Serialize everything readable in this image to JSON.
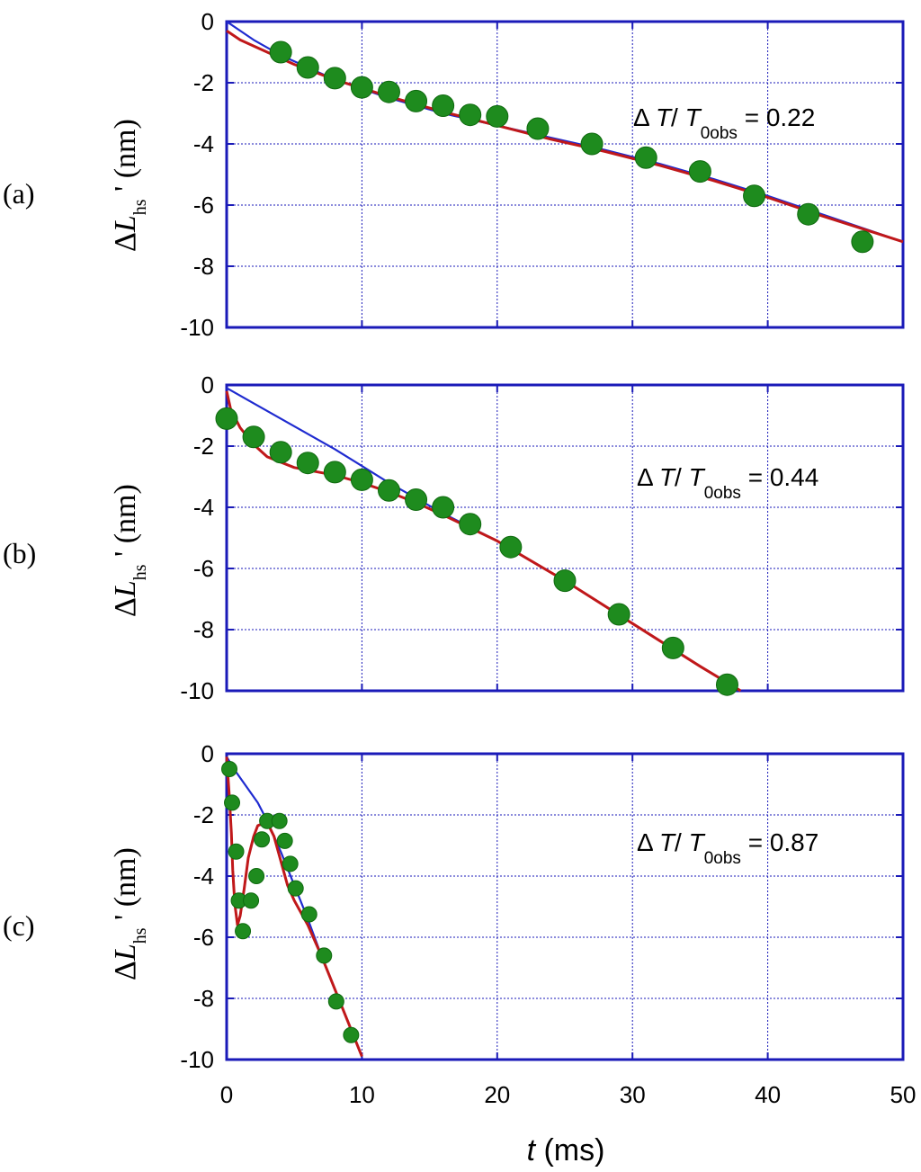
{
  "colors": {
    "frame": "#1a1ab8",
    "grid": "#1a1ab8",
    "blue_line": "#1f2bd0",
    "red_line": "#c0181a",
    "dots": "#1e8b1e",
    "dots_edge": "#0f6a0f"
  },
  "chart_data": [
    {
      "type": "line",
      "panel_label": "(a)",
      "ylabel": "ΔL",
      "ylabel_sub": "hs",
      "ylabel_prime": "'",
      "ylabel_unit": "(nm)",
      "annotation": {
        "delta": "Δ",
        "T": "T",
        "slash": "/ ",
        "T0": "T",
        "sub": "0obs",
        "eq": "= 0.22"
      },
      "xlim": [
        0,
        50
      ],
      "ylim": [
        -10,
        0
      ],
      "x_ticks": [
        "0",
        "10",
        "20",
        "30",
        "40",
        "50"
      ],
      "y_ticks": [
        "0",
        "-2",
        "-4",
        "-6",
        "-8",
        "-10"
      ],
      "x_tick_values": [
        0,
        10,
        20,
        30,
        40,
        50
      ],
      "y_tick_values": [
        0,
        -2,
        -4,
        -6,
        -8,
        -10
      ],
      "grid": true,
      "series": [
        {
          "style": "blue_line",
          "x": [
            0,
            2,
            4,
            8,
            12,
            16,
            20,
            24,
            28,
            32,
            36,
            40,
            44,
            50
          ],
          "y": [
            0,
            -0.6,
            -1.1,
            -1.9,
            -2.5,
            -3.0,
            -3.4,
            -3.8,
            -4.2,
            -4.65,
            -5.15,
            -5.7,
            -6.3,
            -7.2
          ]
        },
        {
          "style": "red_line",
          "x": [
            0,
            1,
            3,
            5,
            8,
            12,
            16,
            20,
            24,
            28,
            32,
            36,
            40,
            44,
            50
          ],
          "y": [
            -0.3,
            -0.6,
            -1.0,
            -1.4,
            -1.9,
            -2.45,
            -2.95,
            -3.4,
            -3.85,
            -4.25,
            -4.7,
            -5.2,
            -5.75,
            -6.35,
            -7.2
          ]
        },
        {
          "style": "dots",
          "x": [
            4,
            6,
            8,
            10,
            12,
            14,
            16,
            18,
            20,
            23,
            27,
            31,
            35,
            39,
            43,
            47
          ],
          "y": [
            -1.0,
            -1.5,
            -1.85,
            -2.15,
            -2.3,
            -2.6,
            -2.75,
            -3.05,
            -3.1,
            -3.5,
            -4.0,
            -4.45,
            -4.9,
            -5.7,
            -6.3,
            -7.2
          ]
        }
      ]
    },
    {
      "type": "line",
      "panel_label": "(b)",
      "ylabel": "ΔL",
      "ylabel_sub": "hs",
      "ylabel_prime": "'",
      "ylabel_unit": "(nm)",
      "annotation": {
        "delta": "Δ",
        "T": "T",
        "slash": "/ ",
        "T0": "T",
        "sub": "0obs",
        "eq": "= 0.44"
      },
      "xlim": [
        0,
        50
      ],
      "ylim": [
        -10,
        0
      ],
      "x_ticks": [
        "0",
        "10",
        "20",
        "30",
        "40",
        "50"
      ],
      "y_ticks": [
        "0",
        "-2",
        "-4",
        "-6",
        "-8",
        "-10"
      ],
      "x_tick_values": [
        0,
        10,
        20,
        30,
        40,
        50
      ],
      "y_tick_values": [
        0,
        -2,
        -4,
        -6,
        -8,
        -10
      ],
      "grid": true,
      "series": [
        {
          "style": "blue_line",
          "x": [
            0,
            2,
            4,
            6,
            8,
            10,
            12,
            14,
            16,
            20,
            25,
            30,
            35,
            38
          ],
          "y": [
            -0.1,
            -0.6,
            -1.1,
            -1.6,
            -2.1,
            -2.65,
            -3.2,
            -3.7,
            -4.2,
            -5.1,
            -6.4,
            -7.8,
            -9.2,
            -10.0
          ]
        },
        {
          "style": "red_line",
          "x": [
            0,
            0.3,
            1,
            2,
            3,
            5,
            8,
            10,
            12,
            14,
            16,
            20,
            25,
            30,
            35,
            38
          ],
          "y": [
            -0.2,
            -0.8,
            -1.4,
            -1.95,
            -2.35,
            -2.7,
            -2.95,
            -3.2,
            -3.5,
            -3.85,
            -4.25,
            -5.1,
            -6.4,
            -7.8,
            -9.2,
            -10.0
          ]
        },
        {
          "style": "dots",
          "x": [
            0,
            2,
            4,
            6,
            8,
            10,
            12,
            14,
            16,
            18,
            21,
            25,
            29,
            33,
            37
          ],
          "y": [
            -1.1,
            -1.7,
            -2.2,
            -2.55,
            -2.85,
            -3.1,
            -3.45,
            -3.75,
            -4.0,
            -4.55,
            -5.3,
            -6.4,
            -7.5,
            -8.6,
            -9.8
          ]
        }
      ]
    },
    {
      "type": "line",
      "panel_label": "(c)",
      "ylabel": "ΔL",
      "ylabel_sub": "hs",
      "ylabel_prime": "'",
      "ylabel_unit": "(nm)",
      "annotation": {
        "delta": "Δ",
        "T": "T",
        "slash": "/ ",
        "T0": "T",
        "sub": "0obs",
        "eq": "= 0.87"
      },
      "xlim": [
        0,
        50
      ],
      "ylim": [
        -10,
        0
      ],
      "x_ticks": [
        "0",
        "10",
        "20",
        "30",
        "40",
        "50"
      ],
      "y_ticks": [
        "0",
        "-2",
        "-4",
        "-6",
        "-8",
        "-10"
      ],
      "x_tick_values": [
        0,
        10,
        20,
        30,
        40,
        50
      ],
      "y_tick_values": [
        0,
        -2,
        -4,
        -6,
        -8,
        -10
      ],
      "grid": true,
      "xlabel": "t",
      "xlabel_unit": "(ms)",
      "series": [
        {
          "style": "blue_line",
          "x": [
            0,
            0.7,
            1.5,
            2.3,
            3.0,
            4.0,
            5.0,
            6.0,
            7.0,
            8.0,
            9.0,
            10.0
          ],
          "y": [
            -0.1,
            -0.6,
            -1.1,
            -1.6,
            -2.2,
            -3.2,
            -4.3,
            -5.4,
            -6.6,
            -7.7,
            -8.8,
            -9.9
          ]
        },
        {
          "style": "red_line",
          "x": [
            0,
            0.2,
            0.35,
            0.45,
            0.6,
            0.8,
            1.0,
            1.3,
            1.6,
            2.0,
            2.3,
            2.6,
            3.0,
            3.5,
            4.0,
            4.5,
            5.0,
            6.0,
            7.0,
            8.0,
            9.0,
            10.0
          ],
          "y": [
            -0.1,
            -1.4,
            -2.6,
            -3.8,
            -4.9,
            -5.6,
            -5.3,
            -4.4,
            -3.4,
            -2.7,
            -2.35,
            -2.3,
            -2.25,
            -2.7,
            -3.5,
            -4.3,
            -4.8,
            -5.6,
            -6.6,
            -7.7,
            -8.8,
            -9.9
          ]
        },
        {
          "style": "dots",
          "x": [
            0.2,
            0.4,
            0.7,
            0.9,
            1.2,
            1.8,
            2.2,
            2.6,
            3.0,
            3.9,
            4.3,
            4.7,
            5.1,
            6.1,
            7.2,
            8.1,
            9.2
          ],
          "y": [
            -0.5,
            -1.6,
            -3.2,
            -4.8,
            -5.8,
            -4.8,
            -4.0,
            -2.8,
            -2.2,
            -2.2,
            -2.85,
            -3.6,
            -4.4,
            -5.25,
            -6.6,
            -8.1,
            -9.2
          ]
        }
      ]
    }
  ]
}
